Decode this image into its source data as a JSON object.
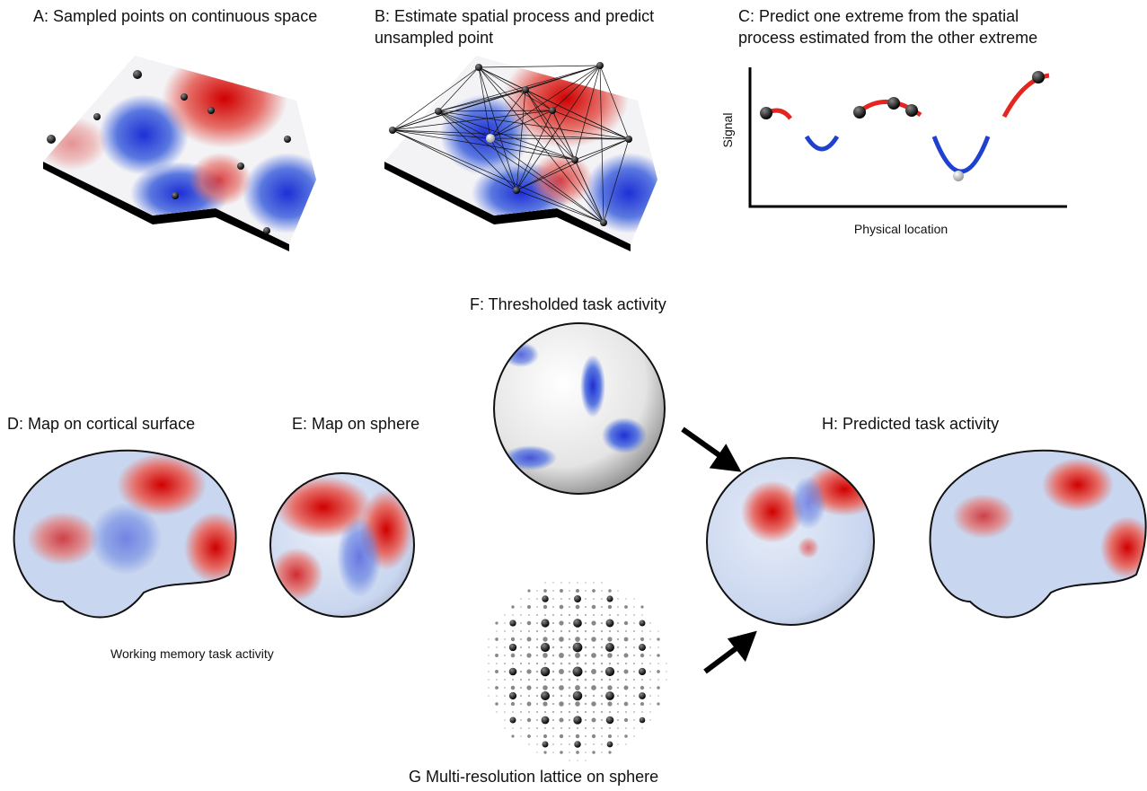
{
  "panel_a": {
    "title": "A: Sampled points on continuous space"
  },
  "panel_b": {
    "title": [
      "B:  Estimate spatial process and predict",
      "unsampled point"
    ]
  },
  "panel_c": {
    "title": [
      "C:  Predict one extreme from the spatial",
      "process estimated from the other extreme"
    ],
    "y_axis_label": "Signal",
    "x_axis_label": "Physical location"
  },
  "panel_d": {
    "title": "D: Map on cortical surface",
    "caption": "Working memory task activity"
  },
  "panel_e": {
    "title": "E: Map on sphere"
  },
  "panel_f": {
    "title": "F:  Thresholded task activity"
  },
  "panel_g": {
    "title": "G Multi-resolution lattice on sphere"
  },
  "panel_h": {
    "title": "H: Predicted task activity"
  }
}
